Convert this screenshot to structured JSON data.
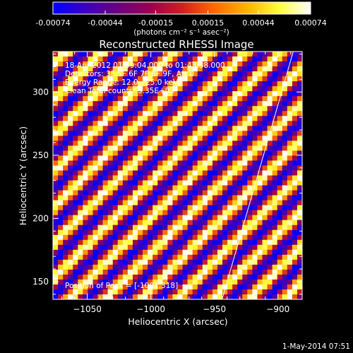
{
  "colorbar": {
    "tick_labels": [
      "-0.00074",
      "-0.00044",
      "-0.00015",
      "0.00015",
      "0.00044",
      "0.00074"
    ],
    "tick_values": [
      -0.00074,
      -0.00044,
      -0.00015,
      0.00015,
      0.00044,
      0.00074
    ],
    "range": [
      -0.00074,
      0.00074
    ],
    "units_label": "(photons cm⁻² s⁻¹ asec⁻²)"
  },
  "annotations": {
    "line1": "18-Apr-2012 01:39:04.000 to 01:43:38.000",
    "line2": "Detectors: 3F 5F 6F 7F 8F 9F, Att 0",
    "line3": "Energy Range: 12.0 - 25.0 keV",
    "line4": "Clean    Total counts: 5.35E+03",
    "peak": "Position of Peak = [-1001,318]"
  },
  "footer": {
    "timestamp": "1-May-2014 07:51"
  },
  "colors": {
    "background": "#000000",
    "text": "#ffffff",
    "colormap": [
      "#0000ff",
      "#3a00c0",
      "#6a0080",
      "#9c0050",
      "#cc2020",
      "#ff6600",
      "#ffb000",
      "#ffff40",
      "#ffffff"
    ]
  },
  "chart_data": {
    "type": "heatmap",
    "title": "Reconstructed RHESSI Image",
    "xlabel": "Heliocentric X (arcsec)",
    "ylabel": "Heliocentric Y (arcsec)",
    "xlim": [
      -1077,
      -881
    ],
    "ylim": [
      136,
      332
    ],
    "x_ticks": [
      -1050,
      -1000,
      -950,
      -900
    ],
    "y_ticks": [
      150,
      200,
      250,
      300
    ],
    "x_tick_labels": [
      "−1050",
      "−1000",
      "−950",
      "−900"
    ],
    "y_tick_labels": [
      "150",
      "200",
      "250",
      "300"
    ],
    "grid_cells": [
      50,
      50
    ],
    "pattern": "diagonal stripes",
    "limb_line": [
      [
        -944,
        136
      ],
      [
        -888,
        332
      ]
    ],
    "peak_position": [
      -1001,
      318
    ]
  }
}
